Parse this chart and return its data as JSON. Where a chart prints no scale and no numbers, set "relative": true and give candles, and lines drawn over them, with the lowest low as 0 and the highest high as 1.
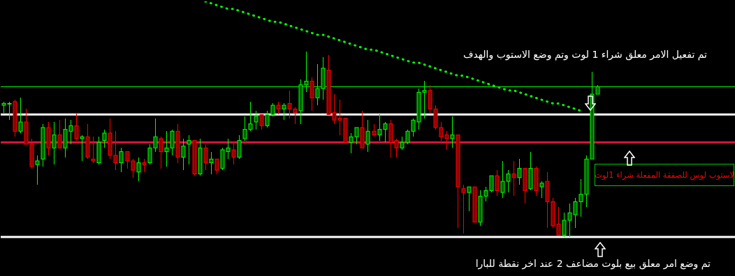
{
  "chart_data": {
    "type": "candlestick",
    "relative": true,
    "categories": [
      null,
      null,
      null,
      null,
      null,
      null,
      null,
      null,
      null,
      null,
      null,
      null,
      null,
      null,
      null,
      null,
      null,
      null,
      null,
      null,
      null,
      null,
      null,
      null,
      null,
      null,
      null,
      null,
      null,
      null,
      null,
      null,
      null,
      null,
      null,
      null,
      null,
      null,
      null,
      null,
      null,
      null,
      null,
      null,
      null,
      null,
      null,
      null,
      null,
      null,
      null,
      null,
      null,
      null,
      null,
      null,
      null,
      null,
      null,
      null,
      null,
      null,
      null,
      null,
      null,
      null,
      null,
      null,
      null,
      null,
      null,
      null,
      null,
      null,
      null,
      null,
      null,
      null,
      null,
      null,
      null,
      null,
      null,
      null,
      null,
      null,
      null,
      null,
      null,
      null,
      null,
      null,
      null,
      null,
      null,
      null,
      null,
      null,
      null,
      null,
      null,
      null,
      null,
      null,
      null,
      null,
      null,
      null,
      null,
      null,
      null,
      null,
      null,
      null,
      null,
      null,
      null,
      null,
      null,
      null,
      null,
      null,
      null,
      null,
      null,
      null,
      null,
      null,
      null,
      null,
      null
    ],
    "colors": [
      "#00ff00",
      "#00ff00",
      "#ff0000",
      "#00ff00",
      "#ff0000",
      "#ff0000",
      "#00ff00",
      "#00ff00",
      "#ff0000",
      "#00ff00",
      "#ff0000",
      "#00ff00",
      "#00ff00",
      "#ff0000",
      "#00ff00",
      "#ff0000",
      "#ff0000",
      "#00ff00",
      "#00ff00",
      "#ff0000",
      "#ff0000",
      "#00ff00",
      "#ff0000",
      "#ff0000",
      "#00ff00",
      "#ff0000",
      "#00ff00",
      "#00ff00",
      "#ff0000",
      "#00ff00",
      "#00ff00",
      "#ff0000",
      "#00ff00",
      "#00ff00",
      "#ff0000",
      "#00ff00",
      "#ff0000",
      "#00ff00",
      "#ff0000",
      "#00ff00",
      "#00ff00",
      "#ff0000",
      "#00ff00",
      "#00ff00",
      "#00ff00",
      "#00ff00",
      "#ff0000",
      "#00ff00",
      "#00ff00",
      "#ff0000",
      "#00ff00",
      "#ff0000",
      "#ff0000",
      "#00ff00",
      "#00ff00",
      "#ff0000",
      "#00ff00",
      "#00ff00",
      "#ff0000",
      "#ff0000",
      "#ff0000",
      "#ff0000",
      "#00ff00",
      "#00ff00",
      "#ff0000",
      "#00ff00",
      "#ff0000",
      "#00ff00",
      "#00ff00",
      "#ff0000",
      "#ff0000",
      "#00ff00",
      "#00ff00",
      "#00ff00",
      "#00ff00",
      "#00ff00",
      "#ff0000",
      "#ff0000",
      "#ff0000",
      "#ff0000",
      "#00ff00",
      "#ff0000",
      "#ff0000",
      "#00ff00",
      "#ff0000",
      "#00ff00",
      "#00ff00",
      "#00ff00",
      "#ff0000",
      "#00ff00",
      "#00ff00",
      "#ff0000",
      "#00ff00",
      "#ff0000",
      "#00ff00",
      "#ff0000",
      "#00ff00",
      "#ff0000",
      "#ff0000",
      "#ff0000",
      "#00ff00",
      "#00ff00",
      "#00ff00",
      "#00ff00",
      "#00ff00",
      "#00ff00",
      "#00ff00",
      null,
      null,
      null,
      null,
      null,
      null,
      null,
      null,
      null,
      null,
      null,
      null,
      null,
      null,
      null,
      null,
      null,
      null,
      null,
      null,
      null,
      null,
      null,
      null
    ],
    "ohlc": [
      [
        0.71,
        0.73,
        0.67,
        0.72
      ],
      [
        0.72,
        0.73,
        0.63,
        0.72
      ],
      [
        0.73,
        0.74,
        0.54,
        0.57
      ],
      [
        0.57,
        0.75,
        0.56,
        0.62
      ],
      [
        0.62,
        0.69,
        0.5,
        0.5
      ],
      [
        0.5,
        0.53,
        0.37,
        0.38
      ],
      [
        0.39,
        0.44,
        0.28,
        0.41
      ],
      [
        0.42,
        0.61,
        0.38,
        0.59
      ],
      [
        0.59,
        0.62,
        0.44,
        0.48
      ],
      [
        0.48,
        0.62,
        0.39,
        0.55
      ],
      [
        0.55,
        0.63,
        0.48,
        0.48
      ],
      [
        0.48,
        0.64,
        0.43,
        0.58
      ],
      [
        0.57,
        0.63,
        0.5,
        0.6
      ],
      [
        0.6,
        0.67,
        0.52,
        0.53
      ],
      [
        0.53,
        0.55,
        0.41,
        0.54
      ],
      [
        0.54,
        0.61,
        0.42,
        0.43
      ],
      [
        0.42,
        0.54,
        0.4,
        0.41
      ],
      [
        0.4,
        0.54,
        0.39,
        0.51
      ],
      [
        0.52,
        0.58,
        0.48,
        0.56
      ],
      [
        0.56,
        0.64,
        0.42,
        0.44
      ],
      [
        0.44,
        0.57,
        0.36,
        0.4
      ],
      [
        0.4,
        0.48,
        0.35,
        0.46
      ],
      [
        0.46,
        0.46,
        0.37,
        0.41
      ],
      [
        0.41,
        0.42,
        0.32,
        0.36
      ],
      [
        0.35,
        0.43,
        0.3,
        0.4
      ],
      [
        0.4,
        0.42,
        0.35,
        0.39
      ],
      [
        0.4,
        0.5,
        0.39,
        0.48
      ],
      [
        0.48,
        0.64,
        0.46,
        0.54
      ],
      [
        0.53,
        0.54,
        0.37,
        0.46
      ],
      [
        0.46,
        0.57,
        0.38,
        0.48
      ],
      [
        0.48,
        0.58,
        0.44,
        0.57
      ],
      [
        0.57,
        0.61,
        0.4,
        0.43
      ],
      [
        0.43,
        0.53,
        0.36,
        0.49
      ],
      [
        0.5,
        0.55,
        0.39,
        0.52
      ],
      [
        0.52,
        0.52,
        0.33,
        0.34
      ],
      [
        0.34,
        0.53,
        0.33,
        0.48
      ],
      [
        0.48,
        0.5,
        0.36,
        0.4
      ],
      [
        0.4,
        0.46,
        0.34,
        0.42
      ],
      [
        0.42,
        0.42,
        0.34,
        0.36
      ],
      [
        0.37,
        0.48,
        0.36,
        0.47
      ],
      [
        0.46,
        0.53,
        0.42,
        0.48
      ],
      [
        0.47,
        0.51,
        0.39,
        0.43
      ],
      [
        0.43,
        0.55,
        0.42,
        0.52
      ],
      [
        0.53,
        0.65,
        0.52,
        0.58
      ],
      [
        0.58,
        0.73,
        0.57,
        0.61
      ],
      [
        0.62,
        0.68,
        0.58,
        0.65
      ],
      [
        0.66,
        0.66,
        0.58,
        0.6
      ],
      [
        0.6,
        0.68,
        0.59,
        0.66
      ],
      [
        0.66,
        0.72,
        0.65,
        0.71
      ],
      [
        0.71,
        0.73,
        0.66,
        0.69
      ],
      [
        0.69,
        0.72,
        0.63,
        0.71
      ],
      [
        0.72,
        0.79,
        0.64,
        0.69
      ],
      [
        0.69,
        0.7,
        0.61,
        0.67
      ],
      [
        0.68,
        0.85,
        0.61,
        0.82
      ],
      [
        0.82,
        1,
        0.78,
        0.84
      ],
      [
        0.84,
        0.86,
        0.68,
        0.75
      ],
      [
        0.75,
        0.93,
        0.71,
        0.8
      ],
      [
        0.8,
        0.97,
        0.74,
        0.91
      ],
      [
        0.9,
        0.98,
        0.66,
        0.66
      ],
      [
        0.67,
        0.77,
        0.61,
        0.63
      ],
      [
        0.64,
        0.74,
        0.55,
        0.63
      ],
      [
        0.64,
        0.64,
        0.51,
        0.51
      ],
      [
        0.51,
        0.56,
        0.45,
        0.54
      ],
      [
        0.54,
        0.59,
        0.5,
        0.59
      ],
      [
        0.59,
        0.68,
        0.48,
        0.48
      ],
      [
        0.5,
        0.63,
        0.46,
        0.57
      ],
      [
        0.57,
        0.61,
        0.54,
        0.55
      ],
      [
        0.55,
        0.67,
        0.52,
        0.58
      ],
      [
        0.58,
        0.62,
        0.51,
        0.61
      ],
      [
        0.61,
        0.63,
        0.43,
        0.51
      ],
      [
        0.52,
        0.53,
        0.43,
        0.48
      ],
      [
        0.48,
        0.54,
        0.47,
        0.51
      ],
      [
        0.51,
        0.58,
        0.5,
        0.57
      ],
      [
        0.57,
        0.64,
        0.54,
        0.63
      ],
      [
        0.62,
        0.8,
        0.58,
        0.78
      ],
      [
        0.78,
        0.84,
        0.64,
        0.79
      ],
      [
        0.79,
        0.82,
        0.67,
        0.69
      ],
      [
        0.69,
        0.71,
        0.58,
        0.59
      ],
      [
        0.59,
        0.62,
        0.52,
        0.54
      ],
      [
        0.55,
        0.57,
        0.47,
        0.53
      ],
      [
        0.53,
        0.65,
        0.48,
        0.55
      ],
      [
        0.55,
        0.55,
        0.05,
        0.27
      ],
      [
        0.26,
        0.28,
        0.02,
        0.24
      ],
      [
        0.24,
        0.27,
        0.14,
        0.27
      ],
      [
        0.27,
        0.27,
        0.08,
        0.08
      ],
      [
        0.08,
        0.25,
        0.06,
        0.22
      ],
      [
        0.22,
        0.27,
        0.19,
        0.25
      ],
      [
        0.25,
        0.33,
        0.24,
        0.33
      ],
      [
        0.33,
        0.36,
        0.22,
        0.25
      ],
      [
        0.24,
        0.41,
        0.21,
        0.3
      ],
      [
        0.3,
        0.36,
        0.24,
        0.34
      ],
      [
        0.34,
        0.41,
        0.22,
        0.32
      ],
      [
        0.32,
        0.42,
        0.28,
        0.37
      ],
      [
        0.37,
        0.37,
        0.18,
        0.25
      ],
      [
        0.26,
        0.46,
        0.25,
        0.37
      ],
      [
        0.37,
        0.38,
        0.22,
        0.25
      ],
      [
        0.27,
        0.3,
        0.21,
        0.29
      ],
      [
        0.3,
        0.35,
        0.05,
        0.19
      ],
      [
        0.19,
        0.21,
        0.05,
        0.06
      ],
      [
        0.07,
        0.16,
        0.01,
        0.01
      ],
      [
        0.01,
        0.13,
        0,
        0.09
      ],
      [
        0.09,
        0.18,
        0,
        0.13
      ],
      [
        0.12,
        0.21,
        0.05,
        0.19
      ],
      [
        0.19,
        0.31,
        0.11,
        0.23
      ],
      [
        0.23,
        0.44,
        0.16,
        0.42
      ],
      [
        0.42,
        0.89,
        0.42,
        0.77
      ],
      [
        0.77,
        0.82,
        0.77,
        0.81
      ],
      null,
      null,
      null,
      null,
      null,
      null,
      null,
      null,
      null,
      null,
      null,
      null,
      null,
      null,
      null,
      null,
      null,
      null,
      null,
      null,
      null,
      null,
      null,
      null
    ],
    "series": [
      {
        "type": "line",
        "color": "#00ff00",
        "line_style": "dotted",
        "values": [
          null,
          null,
          null,
          null,
          null,
          null,
          null,
          null,
          null,
          null,
          null,
          null,
          null,
          null,
          null,
          null,
          null,
          null,
          null,
          null,
          null,
          null,
          null,
          null,
          null,
          null,
          null,
          null,
          null,
          null,
          null,
          null,
          null,
          null,
          null,
          null,
          1.27,
          1.26,
          1.25,
          1.24,
          1.23,
          1.23,
          1.22,
          1.21,
          1.2,
          1.19,
          1.18,
          1.17,
          1.16,
          1.16,
          1.15,
          1.14,
          1.13,
          1.12,
          1.11,
          1.1,
          1.09,
          1.09,
          1.08,
          1.07,
          1.06,
          1.05,
          1.04,
          1.03,
          1.02,
          1.01,
          1.01,
          1.0,
          0.99,
          0.98,
          0.97,
          0.96,
          0.95,
          0.94,
          0.94,
          0.93,
          0.92,
          0.91,
          0.9,
          0.89,
          0.88,
          0.87,
          0.87,
          0.86,
          0.85,
          0.84,
          0.83,
          0.82,
          0.81,
          0.8,
          0.79,
          0.79,
          0.78,
          0.77,
          0.76,
          0.75,
          0.74,
          0.73,
          0.72,
          0.72,
          0.71,
          0.7,
          0.69,
          0.68,
          null,
          null,
          null,
          null,
          null,
          null,
          null,
          null,
          null,
          null,
          null,
          null,
          null,
          null,
          null,
          null,
          null,
          null,
          null,
          null,
          null,
          null,
          null,
          null,
          null,
          null,
          null
        ]
      }
    ],
    "ref_lines": [
      {
        "axis": "y",
        "value": 0.81,
        "color": "#00ff00",
        "line_style": "solid"
      },
      {
        "axis": "y",
        "value": 0.66,
        "color": "#ffffff",
        "line_style": "solid"
      },
      {
        "axis": "y",
        "value": 0.51,
        "color": "#dc143c",
        "line_style": "solid"
      },
      {
        "axis": "y",
        "value": 0,
        "color": "#ffffff",
        "line_style": "solid"
      }
    ],
    "annotations": [
      "تم تفعيل الامر معلق شراء 1 لوت وتم وضع الاستوب  والهدف",
      "لاستوب لوس للصفقة المفعلة شراء 1لوت",
      "تم وضع امر معلق بيع بلوت مضاعف 2 عند اخر نقطة للبارا"
    ]
  }
}
